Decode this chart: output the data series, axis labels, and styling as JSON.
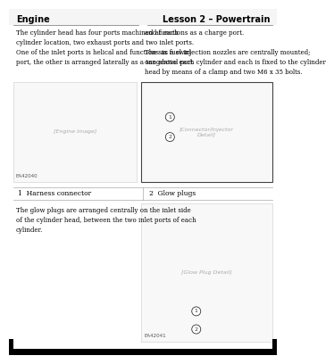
{
  "page_bg": "#ffffff",
  "header_text_left": "Engine",
  "header_text_right": "Lesson 2 – Powertrain",
  "header_line_color": "#555555",
  "body_text_color": "#000000",
  "footer_bg": "#000000",
  "para1_text": "The cylinder head has four ports machined at each\ncylinder location, two exhaust ports and two inlet ports.\nOne of the inlet ports is helical and functions as a swirl\nport, the other is arranged laterally as a tangential port",
  "para2_text": "and functions as a charge port.\n\nThe six fuel injection nozzles are centrally mounted;\none above each cylinder and each is fixed to the cylinder\nhead by means of a clamp and two M6 x 35 bolts.",
  "label1_num": "1",
  "label1_text": "Harness connector",
  "label2_num": "2",
  "label2_text": "Glow plugs",
  "para3_text": "The glow plugs are arranged centrally on the inlet side\nof the cylinder head, between the two inlet ports of each\ncylinder.",
  "text_fontsize": 5.0,
  "label_fontsize": 5.5,
  "header_fontsize": 7.0,
  "img1_label": "EA42040",
  "img3_label": "EA42041"
}
